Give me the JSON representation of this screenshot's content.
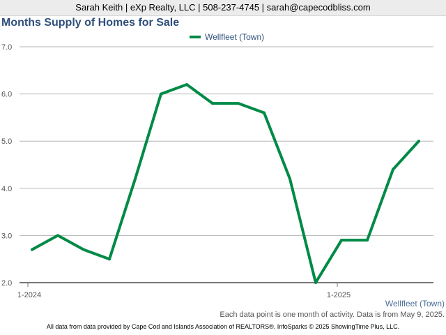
{
  "header": {
    "contact": "Sarah Keith | eXp Realty, LLC | 508-237-4745 | sarah@capecodbliss.com"
  },
  "colors": {
    "series": "#008a46",
    "grid": "#b5b5b5",
    "axis": "#777777"
  },
  "chart_data": {
    "type": "line",
    "title": "Months Supply of Homes for Sale",
    "x": [
      "1-2024",
      "2-2024",
      "3-2024",
      "4-2024",
      "5-2024",
      "6-2024",
      "7-2024",
      "8-2024",
      "9-2024",
      "10-2024",
      "11-2024",
      "12-2024",
      "1-2025",
      "2-2025",
      "3-2025",
      "4-2025"
    ],
    "x_tick_labels": [
      "1-2024",
      "1-2025"
    ],
    "series": [
      {
        "name": "Wellfleet (Town)",
        "values": [
          2.7,
          3.0,
          2.7,
          2.5,
          4.2,
          6.0,
          6.2,
          5.8,
          5.8,
          5.6,
          4.2,
          2.0,
          2.9,
          2.9,
          4.4,
          5.0
        ]
      }
    ],
    "ylim": [
      2.0,
      7.0
    ],
    "y_ticks": [
      "2.0",
      "3.0",
      "4.0",
      "5.0",
      "6.0",
      "7.0"
    ],
    "grid": true,
    "legend": "top-center"
  },
  "footnotes": {
    "series_label": "Wellfleet (Town)",
    "note": "Each data point is one month of activity. Data is from May 9, 2025.",
    "source": "All data from data provided by Cape Cod and Islands Association of REALTORS®. InfoSparks © 2025 ShowingTime Plus, LLC."
  }
}
